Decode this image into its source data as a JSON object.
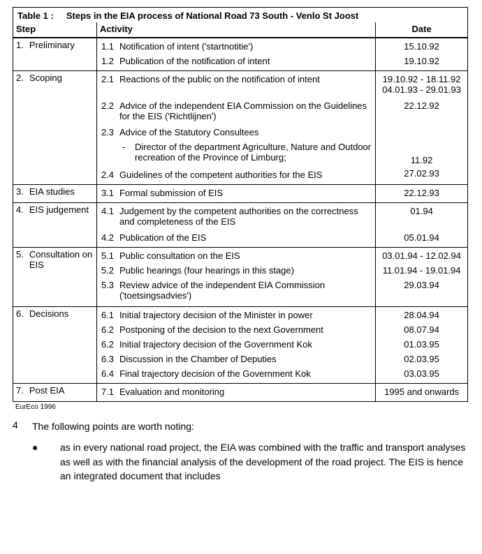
{
  "table": {
    "title_prefix": "Table 1 :",
    "title_text": "Steps in the EIA process of National Road 73 South - Venlo St Joost",
    "headers": {
      "step": "Step",
      "activity": "Activity",
      "date": "Date"
    },
    "steps": [
      {
        "num": "1.",
        "label": "Preliminary",
        "rows": [
          {
            "n": "1.1",
            "txt": "Notification of intent ('startnotitie')",
            "date": "15.10.92"
          },
          {
            "n": "1.2",
            "txt": "Publication of the notification of intent",
            "date": "19.10.92"
          }
        ]
      },
      {
        "num": "2.",
        "label": "Scoping",
        "rows": [
          {
            "n": "2.1",
            "txt": "Reactions of the public on the notification of intent",
            "date": "19.10.92 - 18.11.92\n04.01.93 - 29.01.93"
          },
          {
            "n": "2.2",
            "txt": "Advice of the independent EIA Commission on the Guidelines for the EIS ('Richtlijnen')",
            "date": "22.12.92"
          },
          {
            "n": "2.3",
            "txt": "Advice of the Statutory Consultees",
            "sub": [
              {
                "dash": "-",
                "txt": "Director of the department Agriculture, Nature and Outdoor recreation of the Province of Limburg;",
                "date": "11.92"
              }
            ],
            "date": ""
          },
          {
            "n": "2.4",
            "txt": "Guidelines of the competent authorities for the EIS",
            "date": "27.02.93"
          }
        ]
      },
      {
        "num": "3.",
        "label": "EIA studies",
        "rows": [
          {
            "n": "3.1",
            "txt": "Formal submission of EIS",
            "date": "22.12.93"
          }
        ]
      },
      {
        "num": "4.",
        "label": "EIS judgement",
        "rows": [
          {
            "n": "4.1",
            "txt": "Judgement by the competent authorities on the correctness and completeness of the EIS",
            "date": "01.94"
          },
          {
            "n": "4.2",
            "txt": "Publication of the EIS",
            "date": "05.01.94"
          }
        ]
      },
      {
        "num": "5.",
        "label": "Consultation on EIS",
        "rows": [
          {
            "n": "5.1",
            "txt": "Public consultation on the EIS",
            "date": "03.01.94 - 12.02.94"
          },
          {
            "n": "5.2",
            "txt": "Public hearings (four hearings in this stage)",
            "date": "11.01.94 - 19.01.94"
          },
          {
            "n": "5.3",
            "txt": "Review advice of the independent EIA Commission ('toetsingsadvies')",
            "date": "29.03.94"
          }
        ]
      },
      {
        "num": "6.",
        "label": "Decisions",
        "rows": [
          {
            "n": "6.1",
            "txt": "Initial trajectory decision of the Minister in power",
            "date": "28.04.94"
          },
          {
            "n": "6.2",
            "txt": "Postponing of the decision to the next Government",
            "date": "08.07.94"
          },
          {
            "n": "6.2",
            "txt": "Initial trajectory decision of the Government Kok",
            "date": "01.03.95"
          },
          {
            "n": "6.3",
            "txt": "Discussion in the Chamber of Deputies",
            "date": "02.03.95"
          },
          {
            "n": "6.4",
            "txt": "Final trajectory decision of the Government Kok",
            "date": "03.03.95"
          }
        ]
      },
      {
        "num": "7.",
        "label": "Post EIA",
        "rows": [
          {
            "n": "7.1",
            "txt": "Evaluation and monitoring",
            "date": "1995 and onwards"
          }
        ]
      }
    ],
    "footnote": "EurEco 1996"
  },
  "body": {
    "para_num": "4",
    "para_text": "The following points are worth noting:",
    "bullets": [
      {
        "dot": "●",
        "txt": "as in every national road project, the EIA was combined with the traffic and transport analyses as well as with the financial analysis of the development of the road project. The EIS is hence an integrated document that includes"
      }
    ]
  }
}
